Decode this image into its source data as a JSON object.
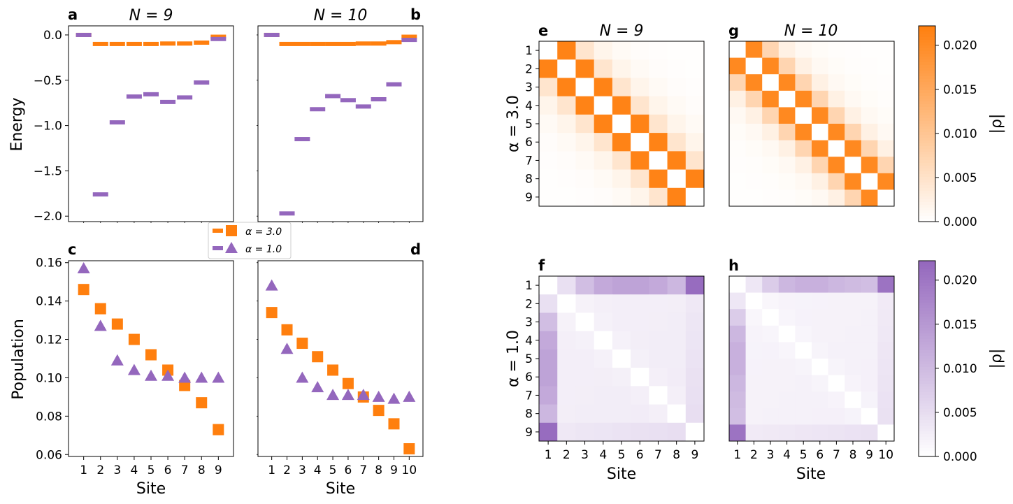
{
  "colors": {
    "orange": "#ff7f0e",
    "purple": "#9467bd",
    "axis": "#000000"
  },
  "legend": {
    "items": [
      {
        "label": "α = 3.0",
        "color_key": "orange"
      },
      {
        "label": "α = 1.0",
        "color_key": "purple"
      }
    ]
  },
  "row_labels": {
    "alpha3": "α = 3.0",
    "alpha1": "α = 1.0"
  },
  "colorbar": {
    "label": "|ρ|",
    "ticks": [
      "0.000",
      "0.005",
      "0.010",
      "0.015",
      "0.020"
    ],
    "tick_values": [
      0.0,
      0.005,
      0.01,
      0.015,
      0.02
    ],
    "vmax": 0.0222
  },
  "chart_data": [
    {
      "panel": "a",
      "type": "scatter",
      "title": "N = 9",
      "ylabel": "Energy",
      "ylim": [
        -2.06,
        0.1
      ],
      "xlim": [
        0.1,
        9.9
      ],
      "yticks": [
        0.0,
        -0.5,
        -1.0,
        -1.5,
        -2.0
      ],
      "ytick_labels": [
        "0.0",
        "−0.5",
        "−1.0",
        "−1.5",
        "−2.0"
      ],
      "series": [
        {
          "name": "α = 3.0",
          "color_key": "orange",
          "x": [
            1,
            2,
            3,
            4,
            5,
            6,
            7,
            8,
            9
          ],
          "values": [
            0.0,
            -0.1,
            -0.1,
            -0.1,
            -0.1,
            -0.095,
            -0.095,
            -0.085,
            -0.02
          ]
        },
        {
          "name": "α = 1.0",
          "color_key": "purple",
          "x": [
            1,
            2,
            3,
            4,
            5,
            6,
            7,
            8,
            9
          ],
          "values": [
            0.0,
            -1.76,
            -0.965,
            -0.68,
            -0.655,
            -0.74,
            -0.69,
            -0.525,
            -0.045
          ]
        }
      ]
    },
    {
      "panel": "b",
      "type": "scatter",
      "title": "N = 10",
      "ylim": [
        -2.06,
        0.1
      ],
      "xlim": [
        0.1,
        10.9
      ],
      "series": [
        {
          "name": "α = 3.0",
          "color_key": "orange",
          "x": [
            1,
            2,
            3,
            4,
            5,
            6,
            7,
            8,
            9,
            10
          ],
          "values": [
            0.0,
            -0.1,
            -0.1,
            -0.1,
            -0.1,
            -0.1,
            -0.095,
            -0.095,
            -0.08,
            -0.02
          ]
        },
        {
          "name": "α = 1.0",
          "color_key": "purple",
          "x": [
            1,
            2,
            3,
            4,
            5,
            6,
            7,
            8,
            9,
            10
          ],
          "values": [
            0.0,
            -1.97,
            -1.15,
            -0.82,
            -0.675,
            -0.72,
            -0.79,
            -0.71,
            -0.545,
            -0.055
          ]
        }
      ]
    },
    {
      "panel": "c",
      "type": "scatter",
      "xlabel": "Site",
      "ylabel": "Population",
      "ylim": [
        0.059,
        0.161
      ],
      "xlim": [
        0.1,
        9.9
      ],
      "yticks": [
        0.06,
        0.08,
        0.1,
        0.12,
        0.14,
        0.16
      ],
      "ytick_labels": [
        "0.06",
        "0.08",
        "0.10",
        "0.12",
        "0.14",
        "0.16"
      ],
      "xtick_labels": [
        "1",
        "2",
        "3",
        "4",
        "5",
        "6",
        "7",
        "8",
        "9"
      ],
      "series": [
        {
          "name": "α = 3.0",
          "marker": "square",
          "color_key": "orange",
          "x": [
            1,
            2,
            3,
            4,
            5,
            6,
            7,
            8,
            9
          ],
          "values": [
            0.146,
            0.136,
            0.128,
            0.12,
            0.112,
            0.104,
            0.096,
            0.087,
            0.073
          ]
        },
        {
          "name": "α = 1.0",
          "marker": "triangle",
          "color_key": "purple",
          "x": [
            1,
            2,
            3,
            4,
            5,
            6,
            7,
            8,
            9
          ],
          "values": [
            0.157,
            0.127,
            0.109,
            0.104,
            0.101,
            0.101,
            0.1,
            0.1,
            0.1
          ]
        }
      ]
    },
    {
      "panel": "d",
      "type": "scatter",
      "xlabel": "Site",
      "ylim": [
        0.059,
        0.161
      ],
      "xlim": [
        0.1,
        10.9
      ],
      "xtick_labels": [
        "1",
        "2",
        "3",
        "4",
        "5",
        "6",
        "7",
        "8",
        "9",
        "10"
      ],
      "series": [
        {
          "name": "α = 3.0",
          "marker": "square",
          "color_key": "orange",
          "x": [
            1,
            2,
            3,
            4,
            5,
            6,
            7,
            8,
            9,
            10
          ],
          "values": [
            0.134,
            0.125,
            0.118,
            0.111,
            0.104,
            0.097,
            0.09,
            0.083,
            0.076,
            0.063
          ]
        },
        {
          "name": "α = 1.0",
          "marker": "triangle",
          "color_key": "purple",
          "x": [
            1,
            2,
            3,
            4,
            5,
            6,
            7,
            8,
            9,
            10
          ],
          "values": [
            0.148,
            0.115,
            0.1,
            0.095,
            0.091,
            0.091,
            0.091,
            0.09,
            0.089,
            0.09
          ]
        }
      ]
    },
    {
      "panel": "e",
      "type": "heatmap",
      "title": "N = 9",
      "n": 9,
      "color_key": "orange",
      "model": "band",
      "ytick_labels": [
        "1",
        "2",
        "3",
        "4",
        "5",
        "6",
        "7",
        "8",
        "9"
      ],
      "band": [
        0,
        0.0215,
        0.0045,
        0.0018,
        0.0009,
        0.0005,
        0.0003,
        0.0002,
        0.0002
      ],
      "corner": 0.0215
    },
    {
      "panel": "g",
      "type": "heatmap",
      "title": "N = 10",
      "n": 10,
      "color_key": "orange",
      "model": "band",
      "band": [
        0,
        0.0205,
        0.0072,
        0.0025,
        0.0011,
        0.0006,
        0.0004,
        0.0003,
        0.0002,
        0.0002
      ],
      "corner": 0.0205
    },
    {
      "panel": "f",
      "type": "heatmap",
      "n": 9,
      "color_key": "purple",
      "model": "edge",
      "ytick_labels": [
        "1",
        "2",
        "3",
        "4",
        "5",
        "6",
        "7",
        "8",
        "9"
      ],
      "xtick_labels": [
        "1",
        "2",
        "3",
        "4",
        "5",
        "6",
        "7",
        "8",
        "9"
      ],
      "xlabel": "Site",
      "edge": [
        0,
        0.0045,
        0.0095,
        0.0125,
        0.0135,
        0.0135,
        0.0125,
        0.0105,
        0.0215
      ],
      "interior": 0.0018,
      "interior_near_edge": 0.0032
    },
    {
      "panel": "h",
      "type": "heatmap",
      "n": 10,
      "color_key": "purple",
      "model": "edge",
      "xtick_labels": [
        "1",
        "2",
        "3",
        "4",
        "5",
        "6",
        "7",
        "8",
        "9",
        "10"
      ],
      "xlabel": "Site",
      "edge": [
        0,
        0.0035,
        0.0075,
        0.0105,
        0.0115,
        0.0115,
        0.0105,
        0.01,
        0.0095,
        0.0205
      ],
      "interior": 0.0012,
      "interior_near_edge": 0.0028
    }
  ]
}
